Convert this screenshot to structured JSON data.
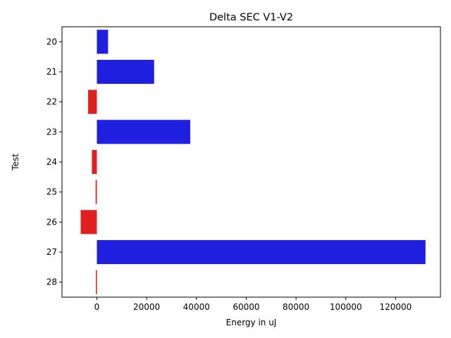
{
  "chart_data": {
    "type": "bar",
    "orientation": "horizontal",
    "title": "Delta SEC V1-V2",
    "xlabel": "Energy in uJ",
    "ylabel": "Test",
    "categories": [
      "20",
      "21",
      "22",
      "23",
      "24",
      "25",
      "26",
      "27",
      "28"
    ],
    "values": [
      4500,
      23000,
      -3500,
      37500,
      -2000,
      -500,
      -6500,
      132000,
      -400
    ],
    "xlim": [
      -14000,
      138000
    ],
    "xticks": [
      0,
      20000,
      40000,
      60000,
      80000,
      100000,
      120000
    ],
    "grid": false,
    "legend": "none",
    "colors": {
      "positive": "#1f1fe0",
      "negative": "#e01f1f"
    }
  }
}
